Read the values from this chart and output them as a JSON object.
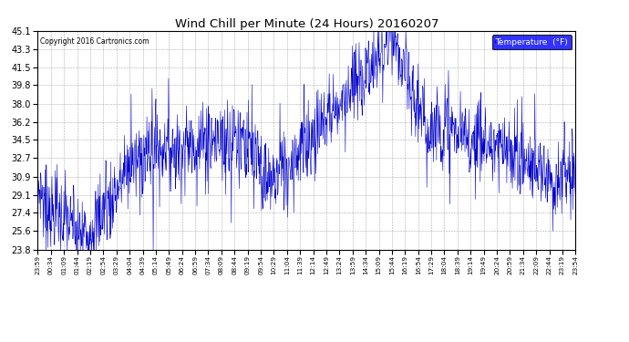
{
  "title": "Wind Chill per Minute (24 Hours) 20160207",
  "copyright": "Copyright 2016 Cartronics.com",
  "legend_label": "Temperature  (°F)",
  "line_color": "#0000cc",
  "background_color": "#ffffff",
  "plot_bg_color": "#ffffff",
  "grid_color": "#999999",
  "yticks": [
    23.8,
    25.6,
    27.4,
    29.1,
    30.9,
    32.7,
    34.5,
    36.2,
    38.0,
    39.8,
    41.5,
    43.3,
    45.1
  ],
  "ymin": 23.8,
  "ymax": 45.1,
  "xtick_labels": [
    "23:59",
    "00:34",
    "01:09",
    "01:44",
    "02:19",
    "02:54",
    "03:29",
    "04:04",
    "04:39",
    "05:14",
    "05:49",
    "06:24",
    "06:59",
    "07:34",
    "08:09",
    "08:44",
    "09:19",
    "09:54",
    "10:29",
    "11:04",
    "11:39",
    "12:14",
    "12:49",
    "13:24",
    "13:59",
    "14:34",
    "15:09",
    "15:44",
    "16:19",
    "16:54",
    "17:29",
    "18:04",
    "18:39",
    "19:14",
    "19:49",
    "20:24",
    "20:59",
    "21:34",
    "22:09",
    "22:44",
    "23:19",
    "23:54"
  ],
  "seed": 7
}
